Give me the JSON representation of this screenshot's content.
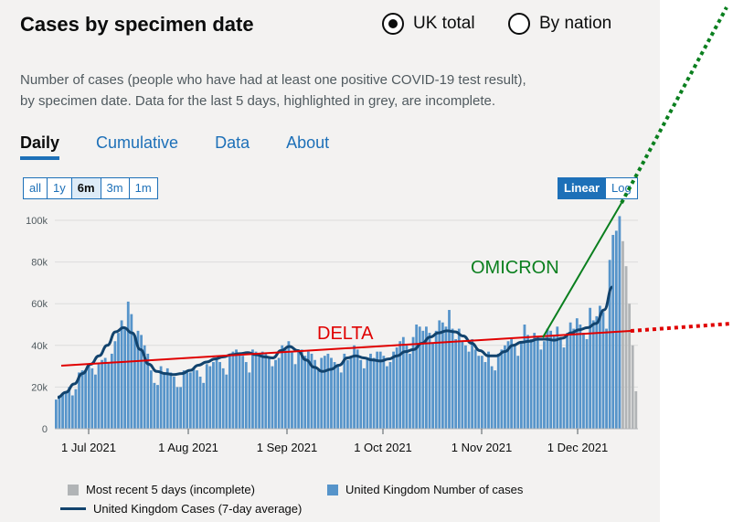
{
  "header": {
    "title": "Cases by specimen date"
  },
  "view_options": [
    {
      "label": "UK total",
      "selected": true
    },
    {
      "label": "By nation",
      "selected": false
    }
  ],
  "description": {
    "line1": "Number of cases (people who have had at least one positive COVID-19 test result),",
    "line2": "by specimen date. Data for the last 5 days, highlighted in grey, are incomplete."
  },
  "tabs": [
    {
      "label": "Daily",
      "active": true
    },
    {
      "label": "Cumulative",
      "active": false
    },
    {
      "label": "Data",
      "active": false
    },
    {
      "label": "About",
      "active": false
    }
  ],
  "time_range_buttons": [
    {
      "label": "all",
      "selected": false
    },
    {
      "label": "1y",
      "selected": false
    },
    {
      "label": "6m",
      "selected": true
    },
    {
      "label": "3m",
      "selected": false
    },
    {
      "label": "1m",
      "selected": false
    }
  ],
  "scale_buttons": [
    {
      "label": "Linear",
      "selected": true
    },
    {
      "label": "Log",
      "selected": false
    }
  ],
  "colors": {
    "bar": "#5694ca",
    "bar_incomplete": "#b1b4b6",
    "average_line": "#12436d",
    "annotation_delta": "#e00000",
    "annotation_omicron": "#0a7f1e",
    "link": "#1d70b8"
  },
  "chart_data": {
    "type": "bar",
    "ylim": [
      0,
      100000
    ],
    "y_ticks": [
      "0",
      "20k",
      "40k",
      "60k",
      "80k",
      "100k"
    ],
    "x_tick_labels": [
      "1 Jul 2021",
      "1 Aug 2021",
      "1 Sep 2021",
      "1 Oct 2021",
      "1 Nov 2021",
      "1 Dec 2021"
    ],
    "series": [
      {
        "name": "United Kingdom Number of cases",
        "values": [
          14000,
          16000,
          17000,
          18000,
          20000,
          16000,
          19000,
          27000,
          28000,
          28000,
          30000,
          29000,
          26000,
          31000,
          33000,
          34000,
          32000,
          36000,
          42000,
          46000,
          52000,
          48000,
          61000,
          55000,
          44000,
          47000,
          45000,
          40000,
          36000,
          28000,
          22000,
          21000,
          30000,
          27000,
          29000,
          27000,
          25000,
          20000,
          20000,
          28000,
          27000,
          27000,
          29000,
          28000,
          25000,
          22000,
          31000,
          30000,
          32000,
          33000,
          32000,
          29000,
          26000,
          36000,
          37000,
          38000,
          36000,
          35000,
          32000,
          27000,
          38000,
          37000,
          36000,
          37000,
          36000,
          34000,
          30000,
          33000,
          34000,
          40000,
          38000,
          42000,
          37000,
          31000,
          38000,
          38000,
          35000,
          37000,
          36000,
          33000,
          28000,
          34000,
          35000,
          36000,
          34000,
          32000,
          30000,
          27000,
          36000,
          33000,
          35000,
          40000,
          38000,
          33000,
          29000,
          34000,
          36000,
          34000,
          37000,
          37000,
          35000,
          30000,
          32000,
          37000,
          39000,
          42000,
          44000,
          40000,
          36000,
          44000,
          50000,
          49000,
          47000,
          49000,
          46000,
          41000,
          47000,
          52000,
          51000,
          49000,
          57000,
          48000,
          43000,
          48000,
          42000,
          40000,
          37000,
          43000,
          38000,
          35000,
          35000,
          32000,
          37000,
          30000,
          28000,
          36000,
          38000,
          40000,
          42000,
          43000,
          40000,
          35000,
          41000,
          50000,
          45000,
          43000,
          46000,
          44000,
          38000,
          42000,
          48000,
          47000,
          45000,
          49000,
          44000,
          39000,
          46000,
          51000,
          48000,
          53000,
          50000,
          46000,
          43000,
          58000,
          52000,
          54000,
          59000,
          56000,
          48000,
          81000,
          93000,
          95000,
          102000
        ],
        "color_key": "bar"
      },
      {
        "name": "Most recent 5 days (incomplete)",
        "values": [
          90000,
          78000,
          60000,
          40000,
          18000
        ],
        "color_key": "bar_incomplete"
      },
      {
        "name": "United Kingdom Cases (7-day average)",
        "values": [
          15000,
          17500,
          21500,
          26500,
          31000,
          35000,
          40000,
          46500,
          48500,
          46000,
          38000,
          31000,
          27500,
          26500,
          26000,
          26500,
          28000,
          30500,
          32000,
          33500,
          34500,
          35500,
          36000,
          36500,
          35500,
          34500,
          34000,
          37500,
          39500,
          37500,
          33000,
          29500,
          27500,
          28500,
          30500,
          34000,
          35000,
          34000,
          33000,
          32500,
          33500,
          35000,
          37000,
          38000,
          41000,
          44000,
          46000,
          47000,
          46500,
          44500,
          41000,
          37500,
          35000,
          35000,
          37000,
          40000,
          41500,
          42000,
          43000,
          43000,
          42500,
          43500,
          46000,
          47500,
          48500,
          50500,
          57000,
          68000
        ],
        "color_key": "average_line"
      }
    ],
    "annotations": [
      {
        "label": "DELTA",
        "color_key": "annotation_delta"
      },
      {
        "label": "OMICRON",
        "color_key": "annotation_omicron"
      }
    ]
  },
  "legend": [
    {
      "label": "Most recent 5 days (incomplete)"
    },
    {
      "label": "United Kingdom Number of cases"
    },
    {
      "label": "United Kingdom Cases (7-day average)"
    }
  ]
}
